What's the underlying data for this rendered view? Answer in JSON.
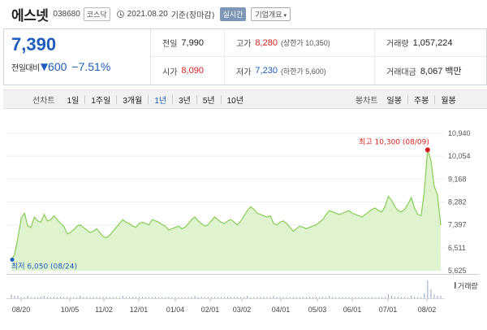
{
  "stock": {
    "name": "에스넷",
    "code": "038680",
    "market": "코스닥",
    "date": "2021.08.20",
    "basis": "기준(장마감)",
    "realtime_label": "실시간",
    "overview_label": "기업개요",
    "overview_caret": "▾"
  },
  "price": {
    "current": "7,390",
    "change_label": "전일대비",
    "change_arrow": "▼",
    "change": "600",
    "change_pct": "−7.51%"
  },
  "stats": {
    "prev_close": {
      "label": "전일",
      "value": "7,990"
    },
    "high": {
      "label": "고가",
      "value": "8,280",
      "sub": "(상한가 10,350)"
    },
    "volume": {
      "label": "거래량",
      "value": "1,057,224"
    },
    "open": {
      "label": "시가",
      "value": "8,090"
    },
    "low": {
      "label": "저가",
      "value": "7,230",
      "sub": "(하한가 5,600)"
    },
    "amount": {
      "label": "거래대금",
      "value": "8,067 백만"
    }
  },
  "tabs": {
    "line_label": "선차트",
    "periods": [
      "1일",
      "1주일",
      "3개월",
      "1년",
      "3년",
      "5년",
      "10년"
    ],
    "active_period": "1년",
    "candle_label": "봉차트",
    "candle_periods": [
      "일봉",
      "주봉",
      "월봉"
    ]
  },
  "colors": {
    "accent_blue": "#1e5dbd",
    "up_red": "#d81f1f",
    "area_line": "#88cc55",
    "area_fill": "#dff3cf"
  },
  "chart_data": {
    "type": "area",
    "y_ticks": [
      "10,940",
      "10,054",
      "9,168",
      "8,282",
      "7,397",
      "6,511",
      "5,625"
    ],
    "ylim": [
      5625,
      10940
    ],
    "x_ticks": [
      "08/20",
      "10/05",
      "11/02",
      "12/01",
      "01/04",
      "02/01",
      "03/02",
      "04/01",
      "05/03",
      "06/01",
      "07/01",
      "08/02"
    ],
    "max_label": "최고 10,300 (08/09)",
    "min_label": "최저 6,050 (08/24)",
    "max_value": 10300,
    "min_value": 6050,
    "volume_label": "거래량",
    "series": [
      {
        "values": [
          6050,
          6250,
          6900,
          7650,
          7850,
          7350,
          7300,
          7700,
          7550,
          7500,
          7800,
          7550,
          7600,
          7750,
          7600,
          7450,
          7350,
          7050,
          7100,
          7200,
          7350,
          7400,
          7300,
          7200,
          7100,
          7150,
          7250,
          7100,
          6950,
          6900,
          7000,
          7150,
          7300,
          7450,
          7600,
          7500,
          7450,
          7350,
          7300,
          7450,
          7500,
          7450,
          7400,
          7600,
          7550,
          7500,
          7400,
          7350,
          7200,
          7250,
          7300,
          7350,
          7250,
          7300,
          7450,
          7600,
          7700,
          7550,
          7450,
          7350,
          7400,
          7550,
          7700,
          7600,
          7500,
          7450,
          7550,
          7600,
          7500,
          7400,
          7550,
          7750,
          7950,
          8100,
          8000,
          7850,
          7800,
          7750,
          7700,
          7750,
          7450,
          7400,
          7500,
          7550,
          7450,
          7300,
          7150,
          7250,
          7350,
          7300,
          7250,
          7300,
          7350,
          7400,
          7500,
          7600,
          7800,
          7950,
          7900,
          7850,
          7800,
          7850,
          7900,
          7950,
          7850,
          7800,
          7750,
          7700,
          7800,
          7900,
          8000,
          8050,
          7950,
          7900,
          8100,
          8500,
          8350,
          8100,
          7950,
          7900,
          8000,
          8200,
          8450,
          8050,
          7800,
          7750,
          8700,
          10300,
          9900,
          8900,
          8550,
          7390
        ],
        "volumes": [
          3,
          2,
          2,
          1,
          1,
          2,
          1,
          1,
          1,
          1,
          2,
          1,
          1,
          1,
          1,
          1,
          1,
          1,
          1,
          1,
          1,
          2,
          1,
          1,
          1,
          1,
          1,
          1,
          1,
          1,
          1,
          1,
          1,
          1,
          2,
          1,
          1,
          1,
          1,
          1,
          1,
          1,
          1,
          1,
          1,
          1,
          1,
          1,
          1,
          1,
          1,
          1,
          1,
          1,
          1,
          1,
          2,
          1,
          1,
          1,
          1,
          1,
          1,
          1,
          1,
          1,
          1,
          1,
          1,
          1,
          1,
          1,
          2,
          1,
          1,
          1,
          1,
          1,
          1,
          1,
          2,
          1,
          1,
          1,
          1,
          1,
          1,
          1,
          1,
          1,
          1,
          1,
          1,
          1,
          1,
          1,
          1,
          2,
          1,
          1,
          1,
          1,
          1,
          1,
          1,
          1,
          1,
          1,
          1,
          1,
          1,
          1,
          1,
          1,
          1,
          3,
          2,
          1,
          1,
          1,
          1,
          1,
          2,
          1,
          1,
          1,
          4,
          14,
          7,
          3,
          2,
          2
        ]
      }
    ]
  }
}
